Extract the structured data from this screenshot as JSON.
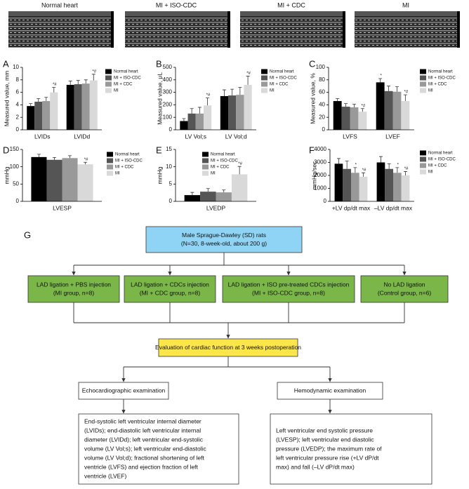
{
  "echo_panels": [
    "Normal heart",
    "MI + ISO-CDC",
    "MI + CDC",
    "MI"
  ],
  "chart_data": [
    {
      "type": "bar",
      "panel": "A",
      "ylabel": "Measured value, mm",
      "categories": [
        "LVIDs",
        "LVIDd"
      ],
      "ylim": [
        0,
        10
      ],
      "yticks": [
        0,
        2,
        4,
        6,
        8,
        10
      ],
      "series": [
        {
          "name": "Normal heart",
          "color": "#000000",
          "values": [
            3.8,
            7.2
          ],
          "errors": [
            0.4,
            0.6
          ],
          "significance": [
            null,
            null
          ]
        },
        {
          "name": "MI + ISO-CDC",
          "color": "#555555",
          "values": [
            4.5,
            7.3
          ],
          "errors": [
            0.5,
            0.6
          ],
          "significance": [
            null,
            null
          ]
        },
        {
          "name": "MI + CDC",
          "color": "#999999",
          "values": [
            4.6,
            7.4
          ],
          "errors": [
            0.6,
            0.6
          ],
          "significance": [
            null,
            null
          ]
        },
        {
          "name": "MI",
          "color": "#d9d9d9",
          "values": [
            6.0,
            7.9
          ],
          "errors": [
            0.8,
            1.0
          ],
          "significance": [
            "*#",
            "*#"
          ]
        }
      ]
    },
    {
      "type": "bar",
      "panel": "B",
      "ylabel": "Measured value, μL",
      "categories": [
        "LV Vol;s",
        "LV Vol;d"
      ],
      "ylim": [
        0,
        500
      ],
      "yticks": [
        0,
        100,
        200,
        300,
        400,
        500
      ],
      "series": [
        {
          "name": "Normal heart",
          "color": "#000000",
          "values": [
            70,
            270
          ],
          "errors": [
            20,
            50
          ],
          "significance": [
            null,
            null
          ]
        },
        {
          "name": "MI + ISO-CDC",
          "color": "#555555",
          "values": [
            130,
            275
          ],
          "errors": [
            40,
            50
          ],
          "significance": [
            null,
            null
          ]
        },
        {
          "name": "MI + CDC",
          "color": "#999999",
          "values": [
            130,
            280
          ],
          "errors": [
            50,
            60
          ],
          "significance": [
            null,
            null
          ]
        },
        {
          "name": "MI",
          "color": "#d9d9d9",
          "values": [
            195,
            360
          ],
          "errors": [
            60,
            70
          ],
          "significance": [
            "*#",
            "*#"
          ]
        }
      ]
    },
    {
      "type": "bar",
      "panel": "C",
      "ylabel": "Measured value, %",
      "categories": [
        "LVFS",
        "LVEF"
      ],
      "ylim": [
        0,
        100
      ],
      "yticks": [
        0,
        20,
        40,
        60,
        80,
        100
      ],
      "series": [
        {
          "name": "Normal heart",
          "color": "#000000",
          "values": [
            46,
            76
          ],
          "errors": [
            4,
            6
          ],
          "significance": [
            null,
            "*"
          ]
        },
        {
          "name": "MI + ISO-CDC",
          "color": "#555555",
          "values": [
            37,
            62
          ],
          "errors": [
            5,
            8
          ],
          "significance": [
            null,
            null
          ]
        },
        {
          "name": "MI + CDC",
          "color": "#999999",
          "values": [
            36,
            61
          ],
          "errors": [
            5,
            8
          ],
          "significance": [
            null,
            null
          ]
        },
        {
          "name": "MI",
          "color": "#d9d9d9",
          "values": [
            29,
            46
          ],
          "errors": [
            5,
            10
          ],
          "significance": [
            "*#",
            "*#"
          ]
        }
      ]
    },
    {
      "type": "bar",
      "panel": "D",
      "ylabel": "mmHg",
      "categories": [
        "LVESP"
      ],
      "ylim": [
        0,
        150
      ],
      "yticks": [
        0,
        50,
        100,
        150
      ],
      "series": [
        {
          "name": "Normal heart",
          "color": "#000000",
          "values": [
            128
          ],
          "errors": [
            8
          ],
          "significance": [
            null
          ]
        },
        {
          "name": "MI + ISO-CDC",
          "color": "#555555",
          "values": [
            120
          ],
          "errors": [
            7
          ],
          "significance": [
            null
          ]
        },
        {
          "name": "MI + CDC",
          "color": "#999999",
          "values": [
            125
          ],
          "errors": [
            7
          ],
          "significance": [
            null
          ]
        },
        {
          "name": "MI",
          "color": "#d9d9d9",
          "values": [
            107
          ],
          "errors": [
            6
          ],
          "significance": [
            "*#"
          ]
        }
      ]
    },
    {
      "type": "bar",
      "panel": "E",
      "ylabel": "mmHg",
      "categories": [
        "LVEDP"
      ],
      "ylim": [
        0,
        15
      ],
      "yticks": [
        0,
        5,
        10,
        15
      ],
      "series": [
        {
          "name": "Normal heart",
          "color": "#000000",
          "values": [
            1.8
          ],
          "errors": [
            0.8
          ],
          "significance": [
            null
          ]
        },
        {
          "name": "MI + ISO-CDC",
          "color": "#555555",
          "values": [
            2.8
          ],
          "errors": [
            0.9
          ],
          "significance": [
            null
          ]
        },
        {
          "name": "MI + CDC",
          "color": "#999999",
          "values": [
            2.6
          ],
          "errors": [
            0.7
          ],
          "significance": [
            null
          ]
        },
        {
          "name": "MI",
          "color": "#d9d9d9",
          "values": [
            7.8
          ],
          "errors": [
            2.3
          ],
          "significance": [
            "*#"
          ]
        }
      ]
    },
    {
      "type": "bar",
      "panel": "F",
      "ylabel": "mmHg/sec",
      "categories": [
        "+LV dp/dt max",
        "–LV dp/dt max"
      ],
      "ylim": [
        0,
        4000
      ],
      "yticks": [
        0,
        1000,
        2000,
        3000,
        4000
      ],
      "series": [
        {
          "name": "Normal heart",
          "color": "#000000",
          "values": [
            2900,
            3000
          ],
          "errors": [
            400,
            450
          ],
          "significance": [
            null,
            null
          ]
        },
        {
          "name": "MI + ISO-CDC",
          "color": "#555555",
          "values": [
            2500,
            2500
          ],
          "errors": [
            600,
            400
          ],
          "significance": [
            null,
            null
          ]
        },
        {
          "name": "MI + CDC",
          "color": "#999999",
          "values": [
            2200,
            2200
          ],
          "errors": [
            400,
            400
          ],
          "significance": [
            "*",
            "*"
          ]
        },
        {
          "name": "MI",
          "color": "#d9d9d9",
          "values": [
            1900,
            2000
          ],
          "errors": [
            300,
            300
          ],
          "significance": [
            "*#",
            "*#"
          ]
        }
      ]
    }
  ],
  "diagram": {
    "panel": "G",
    "nodes": [
      {
        "lines": [
          "Male Sprague-Dawley (SD) rats",
          "(N=30, 8-week-old, about 200 g)"
        ]
      },
      {
        "lines": [
          "LAD ligation + PBS injection",
          "(MI group, n=8)"
        ]
      },
      {
        "lines": [
          "LAD ligation + CDCs injection",
          "(MI + CDC group, n=8)"
        ]
      },
      {
        "lines": [
          "LAD ligation + ISO pre-treated CDCs injection",
          "(MI + ISO-CDC group, n=8)"
        ]
      },
      {
        "lines": [
          "No LAD ligation",
          "(Control group, n=6)"
        ]
      },
      {
        "lines": [
          "Evaluation of cardiac function at 3 weeks postoperation"
        ]
      },
      {
        "lines": [
          "Echocardiographic examination"
        ]
      },
      {
        "lines": [
          "Hemodynamic examination"
        ]
      },
      {
        "lines": [
          "End-systolic left ventricular internal diameter",
          "(LVIDs); end-diastolic left ventricular internal",
          "diameter (LVIDd); left ventricular end-systolic",
          "volume (LV Vol;s); left ventricular end-diastolic",
          "volume (LV Vol;d); fractional shortening of left",
          "ventricle (LVFS) and ejection fraction of left",
          "ventricle (LVEF)"
        ]
      },
      {
        "lines": [
          "Left ventricular end systolic pressure",
          "(LVESP); left ventricular end diastolic",
          "pressure (LVEDP); the maximum rate of",
          "left ventricular pressure rise (+LV dP/dt",
          "max) and fall (–LV dP/dt max)"
        ]
      }
    ]
  }
}
